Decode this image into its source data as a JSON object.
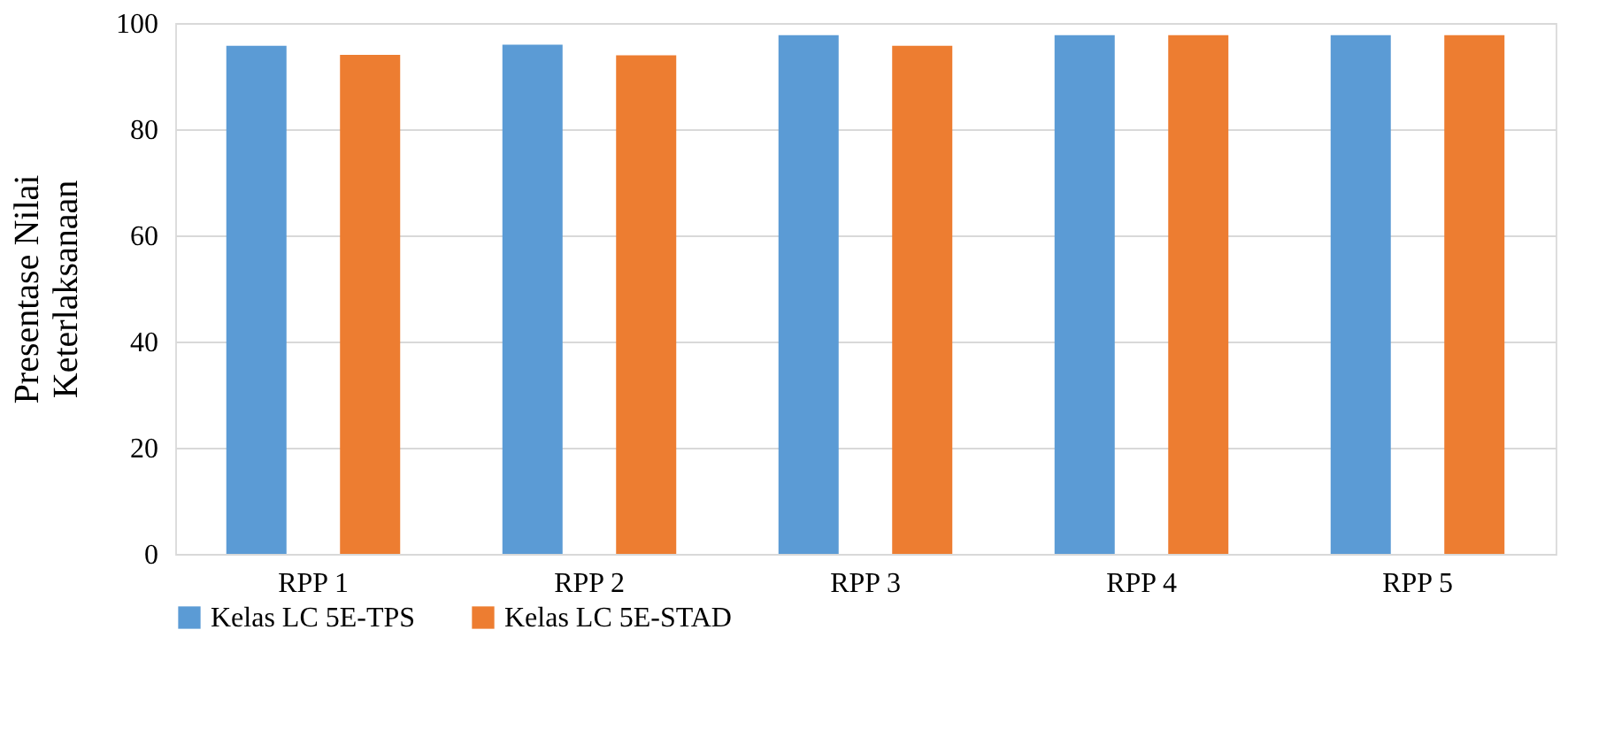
{
  "chart_data": {
    "type": "bar",
    "ylabel": "Presentase Nilai\nKeterlaksanaan",
    "categories": [
      "RPP 1",
      "RPP 2",
      "RPP 3",
      "RPP 4",
      "RPP 5"
    ],
    "series": [
      {
        "name": "Kelas LC 5E-TPS",
        "color": "#5b9bd5",
        "values": [
          95.7,
          95.9,
          97.7,
          97.7,
          97.7
        ]
      },
      {
        "name": "Kelas LC 5E-STAD",
        "color": "#ed7d31",
        "values": [
          94.0,
          93.9,
          95.7,
          97.7,
          97.7
        ]
      }
    ],
    "ylim": [
      0,
      100
    ],
    "yticks": [
      0,
      20,
      40,
      60,
      80,
      100
    ],
    "grid": "y",
    "legend": "bottom"
  }
}
